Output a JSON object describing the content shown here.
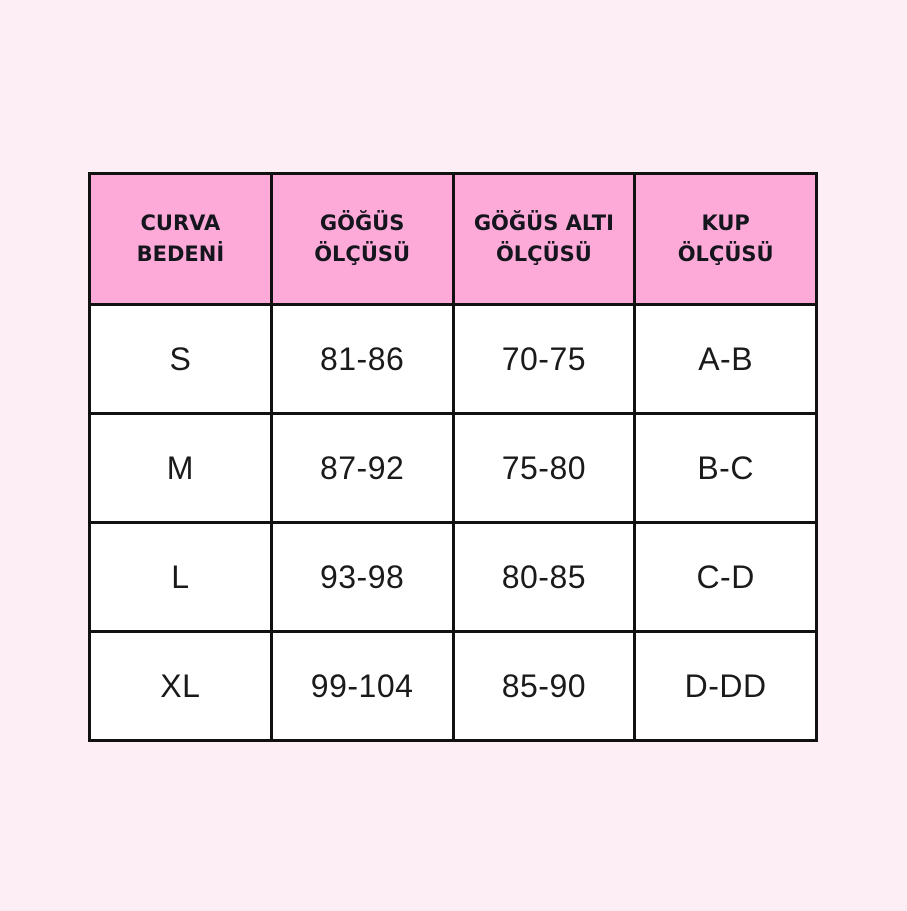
{
  "page": {
    "background_color": "#fdedf4"
  },
  "table_style": {
    "header_bg_color": "#fdaad8",
    "cell_bg_color": "#ffffff",
    "border_color": "#111111",
    "header_text_color": "#15151d",
    "cell_text_color": "#1a1a1a"
  },
  "chart_data": {
    "type": "table",
    "title": "",
    "columns": [
      "CURVA BEDENİ",
      "GÖĞÜS ÖLÇÜSÜ",
      "GÖĞÜS ALTI ÖLÇÜSÜ",
      "KUP ÖLÇÜSÜ"
    ],
    "rows": [
      [
        "S",
        "81-86",
        "70-75",
        "A-B"
      ],
      [
        "M",
        "87-92",
        "75-80",
        "B-C"
      ],
      [
        "L",
        "93-98",
        "80-85",
        "C-D"
      ],
      [
        "XL",
        "99-104",
        "85-90",
        "D-DD"
      ]
    ]
  }
}
